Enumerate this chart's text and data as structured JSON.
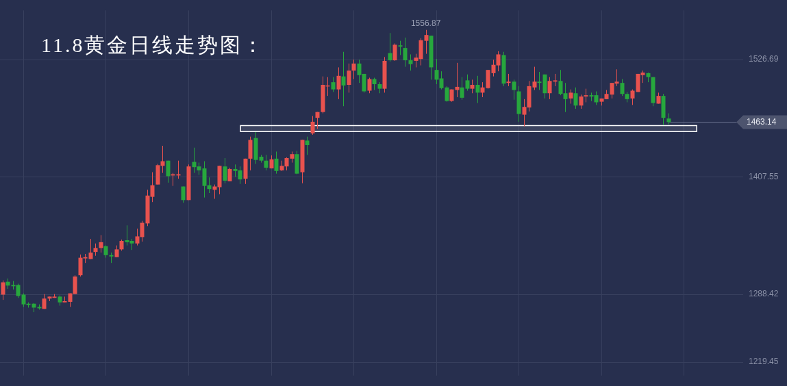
{
  "chart_data": {
    "type": "candlestick",
    "title": "11.8黄金日线走势图：",
    "categories": [
      null,
      null,
      null,
      null,
      null,
      null,
      null,
      null,
      null,
      null,
      null,
      null,
      null,
      null,
      null,
      null,
      null,
      null,
      null,
      null,
      null,
      null,
      null,
      null,
      null,
      null,
      null,
      null,
      null,
      null,
      null,
      null,
      null,
      null,
      null,
      null,
      null,
      null,
      null,
      null,
      null,
      null,
      null,
      null,
      null,
      null,
      null,
      null,
      null,
      null,
      null,
      null,
      null,
      null,
      null,
      null,
      null,
      null,
      null,
      null,
      null,
      null,
      null,
      null,
      null,
      null,
      null,
      null,
      null,
      null,
      null,
      null,
      null,
      null,
      null,
      null,
      null,
      null,
      null,
      null,
      null,
      null,
      null,
      null,
      null,
      null,
      null,
      null,
      null,
      null,
      null,
      null,
      null,
      null,
      null,
      null,
      null,
      null,
      null,
      null,
      null,
      null,
      null,
      null,
      null,
      null,
      null,
      null,
      null,
      null,
      null,
      null,
      null,
      null,
      null,
      null,
      null,
      null,
      null,
      null,
      null,
      null,
      null,
      null,
      null,
      null,
      null,
      null,
      null,
      null,
      null,
      null,
      null,
      null,
      null,
      null,
      null,
      null,
      null,
      null,
      null,
      null,
      null,
      null
    ],
    "ohlc": [
      [
        1287.8,
        1302.2,
        1282.5,
        1300.3
      ],
      [
        1300.9,
        1304.2,
        1293.7,
        1297.0
      ],
      [
        1297.6,
        1301.6,
        1293.0,
        1296.3
      ],
      [
        1297.6,
        1298.9,
        1284.5,
        1286.4
      ],
      [
        1287.8,
        1289.1,
        1275.3,
        1277.9
      ],
      [
        1278.6,
        1279.9,
        1274.6,
        1277.2
      ],
      [
        1278.6,
        1279.2,
        1270.0,
        1274.6
      ],
      [
        1275.3,
        1277.9,
        1272.6,
        1273.9
      ],
      [
        1273.3,
        1288.4,
        1273.3,
        1283.8
      ],
      [
        1283.8,
        1285.8,
        1281.2,
        1285.8
      ],
      [
        1284.5,
        1288.4,
        1284.5,
        1285.8
      ],
      [
        1285.8,
        1287.1,
        1276.6,
        1279.9
      ],
      [
        1279.9,
        1285.8,
        1279.9,
        1281.2
      ],
      [
        1280.5,
        1289.1,
        1275.3,
        1289.1
      ],
      [
        1288.4,
        1307.5,
        1288.4,
        1306.2
      ],
      [
        1307.5,
        1328.6,
        1306.2,
        1325.3
      ],
      [
        1324.6,
        1329.2,
        1320.0,
        1325.9
      ],
      [
        1324.0,
        1344.4,
        1324.0,
        1330.5
      ],
      [
        1331.2,
        1339.8,
        1327.3,
        1335.2
      ],
      [
        1335.2,
        1348.3,
        1330.5,
        1341.1
      ],
      [
        1337.1,
        1337.8,
        1325.3,
        1327.9
      ],
      [
        1327.9,
        1330.5,
        1320.0,
        1326.6
      ],
      [
        1325.9,
        1337.8,
        1325.9,
        1333.8
      ],
      [
        1333.8,
        1343.7,
        1332.5,
        1342.4
      ],
      [
        1343.1,
        1358.2,
        1337.8,
        1341.1
      ],
      [
        1342.4,
        1344.4,
        1333.2,
        1339.8
      ],
      [
        1339.8,
        1354.9,
        1337.8,
        1347.0
      ],
      [
        1346.3,
        1362.8,
        1341.7,
        1360.8
      ],
      [
        1360.2,
        1394.4,
        1357.5,
        1388.5
      ],
      [
        1387.2,
        1412.2,
        1381.9,
        1399.0
      ],
      [
        1399.7,
        1420.7,
        1399.7,
        1419.4
      ],
      [
        1418.7,
        1439.1,
        1411.5,
        1423.4
      ],
      [
        1424.0,
        1424.0,
        1401.6,
        1408.2
      ],
      [
        1408.9,
        1411.5,
        1398.3,
        1410.2
      ],
      [
        1408.9,
        1424.0,
        1405.6,
        1410.2
      ],
      [
        1397.7,
        1397.7,
        1381.2,
        1383.9
      ],
      [
        1383.9,
        1420.1,
        1383.9,
        1418.1
      ],
      [
        1422.7,
        1437.2,
        1411.5,
        1417.4
      ],
      [
        1418.1,
        1422.0,
        1409.5,
        1414.1
      ],
      [
        1416.1,
        1423.4,
        1386.5,
        1398.3
      ],
      [
        1399.0,
        1406.9,
        1391.1,
        1395.1
      ],
      [
        1394.4,
        1399.7,
        1385.2,
        1397.7
      ],
      [
        1397.0,
        1418.7,
        1389.8,
        1418.7
      ],
      [
        1418.1,
        1426.6,
        1401.0,
        1403.6
      ],
      [
        1403.0,
        1416.8,
        1403.0,
        1415.5
      ],
      [
        1415.5,
        1420.1,
        1407.6,
        1413.5
      ],
      [
        1414.1,
        1418.1,
        1400.3,
        1404.9
      ],
      [
        1405.6,
        1426.0,
        1400.3,
        1426.0
      ],
      [
        1426.0,
        1448.4,
        1414.1,
        1445.1
      ],
      [
        1447.0,
        1453.0,
        1420.7,
        1424.7
      ],
      [
        1428.0,
        1429.9,
        1422.0,
        1424.0
      ],
      [
        1424.0,
        1429.9,
        1414.1,
        1416.8
      ],
      [
        1416.1,
        1429.3,
        1416.1,
        1425.3
      ],
      [
        1426.0,
        1433.2,
        1410.8,
        1413.5
      ],
      [
        1414.1,
        1424.0,
        1413.5,
        1418.7
      ],
      [
        1418.1,
        1427.3,
        1414.1,
        1426.6
      ],
      [
        1426.0,
        1433.2,
        1422.0,
        1430.6
      ],
      [
        1430.6,
        1433.9,
        1410.2,
        1410.8
      ],
      [
        1412.2,
        1445.1,
        1401.0,
        1445.1
      ],
      [
        1444.4,
        1448.4,
        1429.9,
        1439.8
      ],
      [
        1451.7,
        1469.4,
        1450.3,
        1463.5
      ],
      [
        1467.5,
        1473.4,
        1456.3,
        1473.4
      ],
      [
        1473.4,
        1509.6,
        1472.1,
        1501.0
      ],
      [
        1499.7,
        1508.9,
        1489.8,
        1500.4
      ],
      [
        1503.7,
        1508.9,
        1493.8,
        1496.4
      ],
      [
        1496.4,
        1518.8,
        1486.5,
        1510.2
      ],
      [
        1509.6,
        1534.6,
        1479.3,
        1500.4
      ],
      [
        1501.0,
        1522.7,
        1493.1,
        1515.5
      ],
      [
        1515.5,
        1526.7,
        1506.9,
        1522.7
      ],
      [
        1522.7,
        1526.7,
        1503.0,
        1510.9
      ],
      [
        1512.2,
        1512.2,
        1493.1,
        1494.4
      ],
      [
        1495.1,
        1508.3,
        1492.5,
        1506.9
      ],
      [
        1506.9,
        1508.3,
        1495.8,
        1501.7
      ],
      [
        1501.7,
        1503.7,
        1492.5,
        1497.1
      ],
      [
        1497.1,
        1529.3,
        1493.1,
        1525.4
      ],
      [
        1533.3,
        1553.7,
        1524.7,
        1526.0
      ],
      [
        1526.0,
        1543.1,
        1525.4,
        1541.8
      ],
      [
        1541.2,
        1545.8,
        1531.3,
        1539.9
      ],
      [
        1538.5,
        1549.1,
        1519.4,
        1526.0
      ],
      [
        1526.0,
        1532.0,
        1515.5,
        1522.1
      ],
      [
        1525.4,
        1532.6,
        1518.8,
        1528.7
      ],
      [
        1527.3,
        1548.4,
        1520.8,
        1546.4
      ],
      [
        1545.8,
        1556.87,
        1532.6,
        1551.7
      ],
      [
        1551.0,
        1551.0,
        1506.3,
        1518.8
      ],
      [
        1516.2,
        1527.3,
        1501.7,
        1506.3
      ],
      [
        1507.6,
        1514.8,
        1496.4,
        1497.7
      ],
      [
        1498.4,
        1499.7,
        1483.9,
        1484.6
      ],
      [
        1484.6,
        1496.4,
        1483.9,
        1496.4
      ],
      [
        1495.8,
        1523.4,
        1488.5,
        1499.0
      ],
      [
        1498.4,
        1508.9,
        1485.9,
        1487.9
      ],
      [
        1505.6,
        1511.6,
        1495.1,
        1497.1
      ],
      [
        1497.1,
        1506.3,
        1492.5,
        1501.0
      ],
      [
        1501.0,
        1510.2,
        1482.6,
        1493.1
      ],
      [
        1493.1,
        1503.7,
        1488.5,
        1498.4
      ],
      [
        1497.7,
        1516.2,
        1497.1,
        1516.2
      ],
      [
        1512.9,
        1526.7,
        1509.6,
        1521.4
      ],
      [
        1520.8,
        1535.2,
        1514.8,
        1532.0
      ],
      [
        1531.3,
        1534.6,
        1499.7,
        1502.3
      ],
      [
        1503.0,
        1512.2,
        1499.7,
        1504.3
      ],
      [
        1504.3,
        1506.3,
        1485.9,
        1495.8
      ],
      [
        1494.4,
        1499.7,
        1463.5,
        1471.4
      ],
      [
        1470.7,
        1486.5,
        1458.9,
        1478.6
      ],
      [
        1478.0,
        1505.0,
        1474.0,
        1499.7
      ],
      [
        1498.4,
        1519.4,
        1495.8,
        1504.3
      ],
      [
        1504.3,
        1514.2,
        1495.8,
        1503.0
      ],
      [
        1511.6,
        1511.6,
        1487.2,
        1492.5
      ],
      [
        1492.5,
        1508.9,
        1486.5,
        1505.0
      ],
      [
        1504.3,
        1512.2,
        1499.7,
        1505.6
      ],
      [
        1505.0,
        1516.2,
        1490.5,
        1491.8
      ],
      [
        1492.5,
        1503.0,
        1473.4,
        1486.5
      ],
      [
        1487.2,
        1496.4,
        1481.9,
        1493.1
      ],
      [
        1492.5,
        1498.4,
        1476.7,
        1480.0
      ],
      [
        1480.0,
        1491.1,
        1476.7,
        1489.2
      ],
      [
        1489.2,
        1497.1,
        1483.3,
        1490.5
      ],
      [
        1490.5,
        1493.1,
        1484.6,
        1489.2
      ],
      [
        1490.5,
        1494.4,
        1480.6,
        1483.3
      ],
      [
        1483.9,
        1487.2,
        1480.0,
        1487.2
      ],
      [
        1486.5,
        1495.8,
        1486.5,
        1491.8
      ],
      [
        1491.1,
        1503.0,
        1487.2,
        1503.0
      ],
      [
        1502.3,
        1516.8,
        1499.7,
        1504.3
      ],
      [
        1503.0,
        1506.9,
        1489.8,
        1491.8
      ],
      [
        1491.8,
        1493.8,
        1483.3,
        1486.5
      ],
      [
        1487.2,
        1496.4,
        1480.6,
        1495.1
      ],
      [
        1493.8,
        1512.2,
        1493.8,
        1512.2
      ],
      [
        1510.9,
        1515.5,
        1503.0,
        1513.5
      ],
      [
        1512.9,
        1513.5,
        1503.7,
        1508.9
      ],
      [
        1508.9,
        1508.9,
        1479.3,
        1482.6
      ],
      [
        1481.9,
        1493.1,
        1481.9,
        1489.8
      ],
      [
        1489.8,
        1491.8,
        1460.2,
        1467.5
      ],
      [
        1466.8,
        1472.1,
        1460.9,
        1463.14
      ],
      null,
      null,
      null,
      null,
      null,
      null,
      null,
      null,
      null,
      null,
      null,
      null,
      null,
      null
    ],
    "ylim": [
      1205.5,
      1576.7
    ],
    "yticks": [
      1219.45,
      1288.42,
      1407.55,
      1526.69
    ],
    "ref_lines": [
      {
        "axis": "y",
        "value": 1463.14,
        "label": "1463.14",
        "color": "#6b7290"
      }
    ],
    "bands": [
      {
        "axis": "y",
        "from": 1453.6,
        "to": 1459.6,
        "color": "#ffffff"
      }
    ],
    "annotations": [
      "1556.87"
    ],
    "grid": true,
    "tick_labels": "y"
  }
}
